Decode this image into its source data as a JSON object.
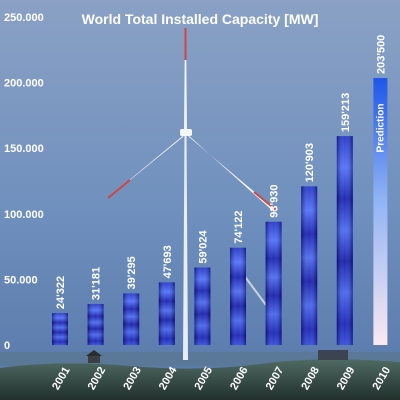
{
  "chart_data": {
    "type": "bar",
    "title": "World Total Installed Capacity [MW]",
    "categories": [
      "2001",
      "2002",
      "2003",
      "2004",
      "2005",
      "2006",
      "2007",
      "2008",
      "2009",
      "2010"
    ],
    "values": [
      24322,
      31181,
      39295,
      47693,
      59024,
      74122,
      93930,
      120903,
      159213,
      203500
    ],
    "value_labels": [
      "24'322",
      "31'181",
      "39'295",
      "47'693",
      "59'024",
      "74'122",
      "93'930",
      "120'903",
      "159'213",
      "203'500"
    ],
    "ytick_labels": [
      "0",
      "50.000",
      "100.000",
      "150.000",
      "200.000",
      "250.000"
    ],
    "ytick_values": [
      0,
      50000,
      100000,
      150000,
      200000,
      250000
    ],
    "ylim": [
      0,
      250000
    ],
    "annotation": "Prediction",
    "prediction_category": "2010",
    "colors": {
      "bar_dark": "#0a14b4",
      "bar_light": "#4d6cff",
      "prediction_top": "#1f4fe0",
      "prediction_bottom": "#ffe6f0",
      "sky_top": "#7f97bd",
      "sky_bottom": "#5f83b4",
      "ground": "#2c3a36"
    },
    "grid": false,
    "legend": "none"
  }
}
